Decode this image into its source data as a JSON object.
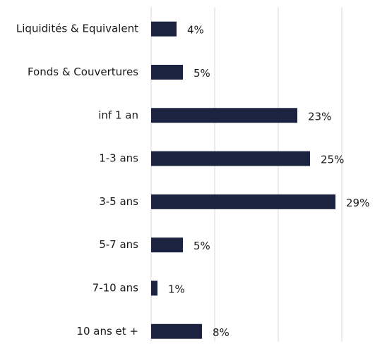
{
  "chart_data": {
    "type": "barh",
    "categories": [
      "Liquidités & Equivalent",
      "Fonds & Couvertures",
      "inf 1 an",
      "1-3 ans",
      "3-5 ans",
      "5-7 ans",
      "7-10 ans",
      "10 ans et +"
    ],
    "values": [
      4,
      5,
      23,
      25,
      29,
      5,
      1,
      8
    ],
    "value_labels": [
      "4%",
      "5%",
      "23%",
      "25%",
      "29%",
      "5%",
      "1%",
      "8%"
    ],
    "color": "#1b2340",
    "xlim": [
      0,
      30
    ],
    "xticks": [
      0,
      10,
      20,
      30
    ],
    "grid": true
  }
}
